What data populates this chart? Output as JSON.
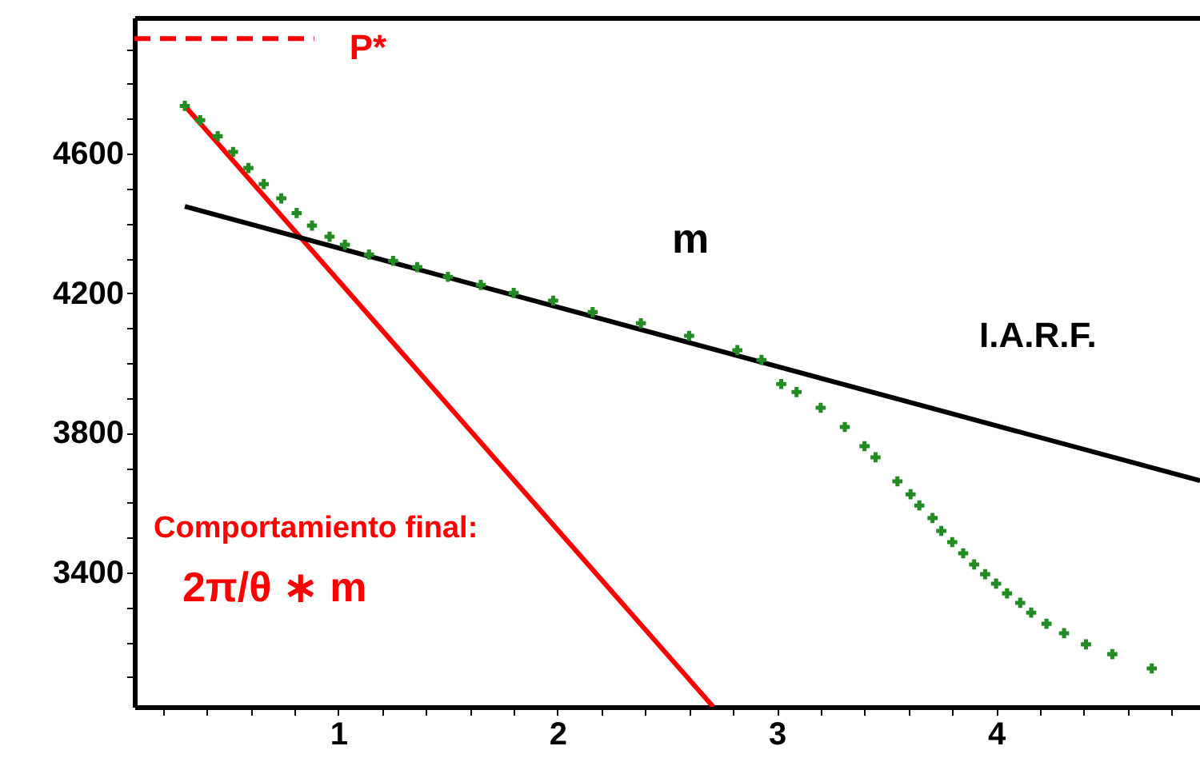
{
  "chart_data": {
    "type": "line",
    "xlim": [
      0.07,
      4.93
    ],
    "ylim": [
      3015,
      4990
    ],
    "xticks": [
      {
        "value": 0.2,
        "label": null
      },
      {
        "value": 0.4,
        "label": null
      },
      {
        "value": 0.6,
        "label": null
      },
      {
        "value": 0.8,
        "label": null
      },
      1,
      {
        "value": 1.2,
        "label": null
      },
      {
        "value": 1.4,
        "label": null
      },
      {
        "value": 1.6,
        "label": null
      },
      {
        "value": 1.8,
        "label": null
      },
      2,
      {
        "value": 2.2,
        "label": null
      },
      {
        "value": 2.4,
        "label": null
      },
      {
        "value": 2.6,
        "label": null
      },
      {
        "value": 2.8,
        "label": null
      },
      3,
      {
        "value": 3.2,
        "label": null
      },
      {
        "value": 3.4,
        "label": null
      },
      {
        "value": 3.6,
        "label": null
      },
      {
        "value": 3.8,
        "label": null
      },
      4,
      {
        "value": 4.2,
        "label": null
      },
      {
        "value": 4.4,
        "label": null
      },
      {
        "value": 4.6,
        "label": null
      },
      {
        "value": 4.8,
        "label": null
      }
    ],
    "yticks": [
      {
        "value": 3100,
        "label": null
      },
      {
        "value": 3200,
        "label": null
      },
      {
        "value": 3300,
        "label": null
      },
      3400,
      {
        "value": 3500,
        "label": null
      },
      {
        "value": 3600,
        "label": null
      },
      {
        "value": 3700,
        "label": null
      },
      3800,
      {
        "value": 3900,
        "label": null
      },
      {
        "value": 4000,
        "label": null
      },
      {
        "value": 4100,
        "label": null
      },
      4200,
      {
        "value": 4300,
        "label": null
      },
      {
        "value": 4400,
        "label": null
      },
      {
        "value": 4500,
        "label": null
      },
      4600,
      {
        "value": 4700,
        "label": null
      },
      {
        "value": 4800,
        "label": null
      },
      {
        "value": 4900,
        "label": null
      }
    ],
    "grid": false,
    "series": [
      {
        "name": "P*",
        "line_style": "dashed",
        "color": "#ff0000",
        "x": [
          0.07,
          0.89
        ],
        "values": [
          4930,
          4930
        ]
      },
      {
        "type": "scatter",
        "marker": "cross",
        "color": "#228b22",
        "x": [
          0.3,
          0.37,
          0.45,
          0.52,
          0.59,
          0.66,
          0.74,
          0.81,
          0.88,
          0.96,
          1.03,
          1.14,
          1.25,
          1.36,
          1.5,
          1.65,
          1.8,
          1.98,
          2.16,
          2.38,
          2.6,
          2.82,
          2.93,
          3.02,
          3.09,
          3.2,
          3.31,
          3.4,
          3.45,
          3.55,
          3.61,
          3.65,
          3.71,
          3.75,
          3.8,
          3.85,
          3.9,
          3.95,
          4.0,
          4.05,
          4.11,
          4.16,
          4.23,
          4.31,
          4.41,
          4.53,
          4.71
        ],
        "values": [
          4737,
          4696,
          4650,
          4605,
          4559,
          4513,
          4472,
          4430,
          4394,
          4362,
          4339,
          4311,
          4293,
          4275,
          4247,
          4224,
          4201,
          4179,
          4146,
          4114,
          4078,
          4037,
          4009,
          3940,
          3917,
          3872,
          3817,
          3762,
          3730,
          3661,
          3624,
          3592,
          3556,
          3519,
          3487,
          3455,
          3423,
          3395,
          3368,
          3340,
          3313,
          3285,
          3253,
          3226,
          3194,
          3166,
          3125
        ]
      },
      {
        "line_style": "solid",
        "color": "#ff0000",
        "x": [
          0.3,
          2.71
        ],
        "values": [
          4737,
          3015
        ]
      },
      {
        "line_style": "solid",
        "color": "#000000",
        "x": [
          0.3,
          4.93
        ],
        "values": [
          4449,
          3663
        ]
      }
    ],
    "annotations": [
      "m",
      "I.A.R.F.",
      "Comportamiento final:",
      "2π/θ ∗ m"
    ]
  }
}
